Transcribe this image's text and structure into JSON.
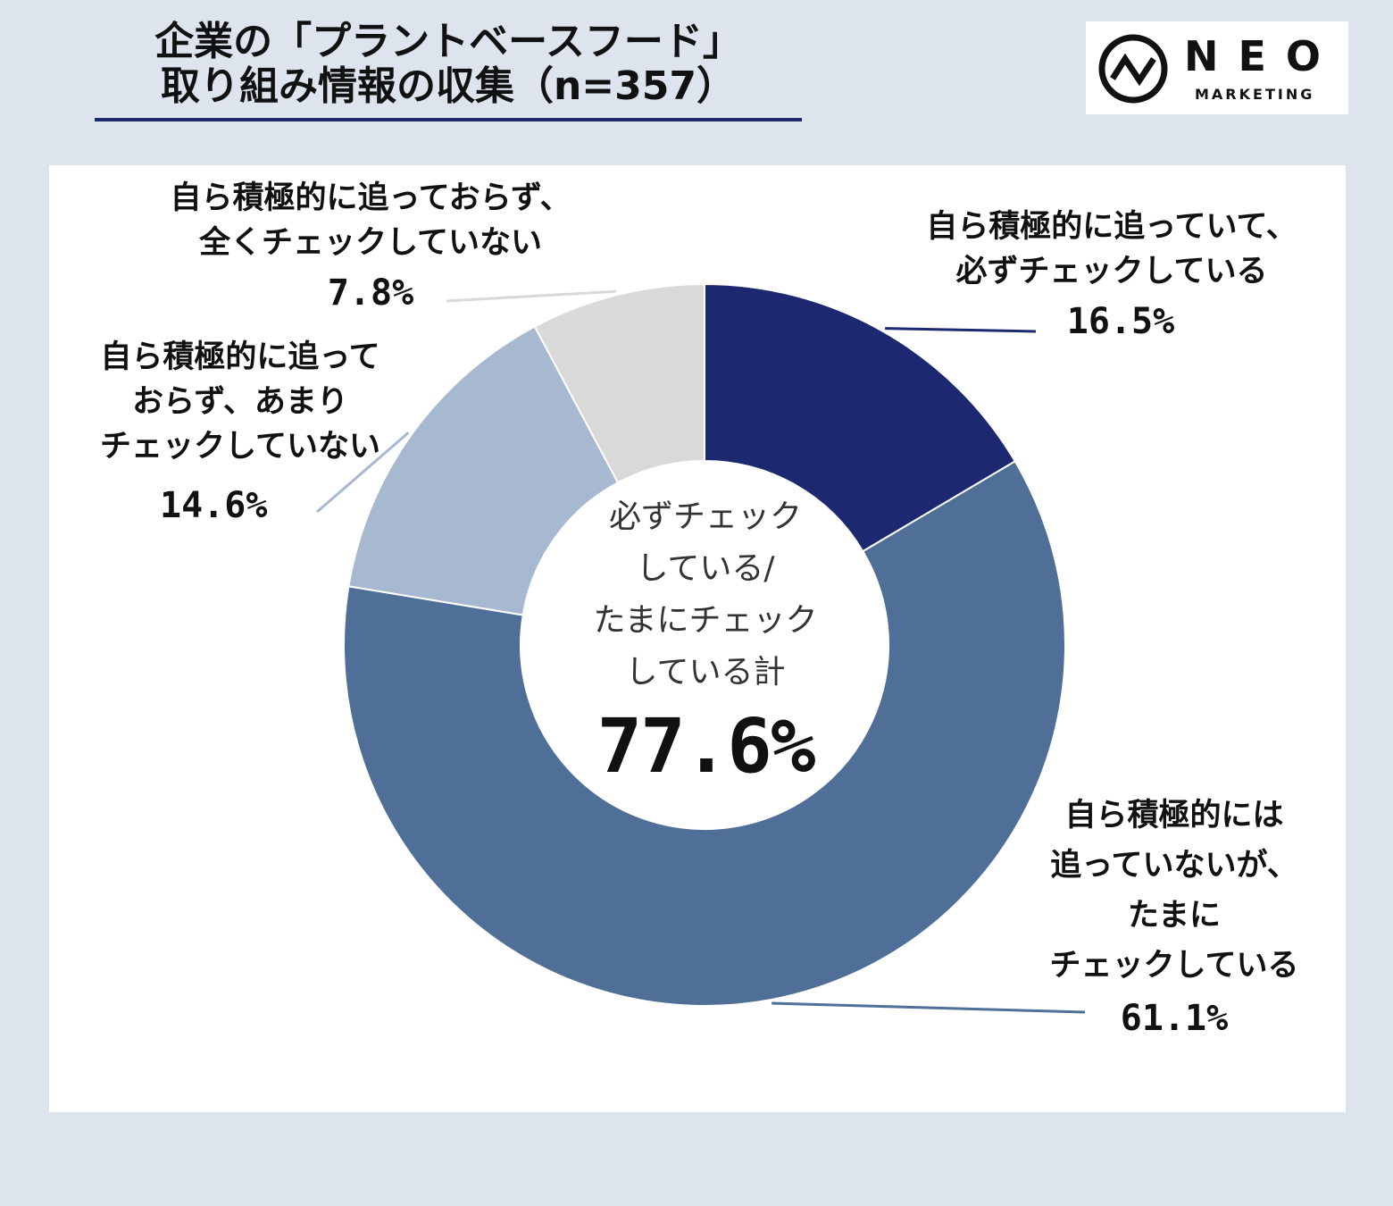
{
  "title": {
    "line1": "企業の「プラントベースフード」",
    "line2": "取り組み情報の収集（n=357）"
  },
  "logo": {
    "name": "NEO",
    "sub": "MARKETING"
  },
  "chart_data": {
    "type": "pie",
    "variant": "donut",
    "title": "企業の「プラントベースフード」取り組み情報の収集（n=357）",
    "series": [
      {
        "name": "自ら積極的に追っていて、必ずチェックしている",
        "value": 16.5,
        "label": "16.5%",
        "color": "#1c2970"
      },
      {
        "name": "自ら積極的には追っていないが、たまにチェックしている",
        "value": 61.1,
        "label": "61.1%",
        "color": "#506f98"
      },
      {
        "name": "自ら積極的に追っておらず、あまりチェックしていない",
        "value": 14.6,
        "label": "14.6%",
        "color": "#a6b9d1"
      },
      {
        "name": "自ら積極的に追っておらず、全くチェックしていない",
        "value": 7.8,
        "label": "7.8%",
        "color": "#d9d9d9"
      }
    ],
    "center_label": "必ずチェックしている/たまにチェックしている計",
    "center_value": "77.6%"
  },
  "labels": {
    "must": {
      "lines": [
        "自ら積極的に追っていて、",
        "必ずチェックしている"
      ],
      "pct": "16.5%"
    },
    "sometimes": {
      "lines": [
        "自ら積極的には",
        "追っていないが、",
        "たまに",
        "チェックしている"
      ],
      "pct": "61.1%"
    },
    "rarely": {
      "lines": [
        "自ら積極的に追って",
        "おらず、あまり",
        "チェックしていない"
      ],
      "pct": "14.6%"
    },
    "notall": {
      "lines": [
        "自ら積極的に追っておらず、",
        "全くチェックしていない"
      ],
      "pct": "7.8%"
    }
  },
  "center": {
    "lines": [
      "必ずチェック",
      "している/",
      "たまにチェック",
      "している計"
    ],
    "total": "77.6%"
  }
}
